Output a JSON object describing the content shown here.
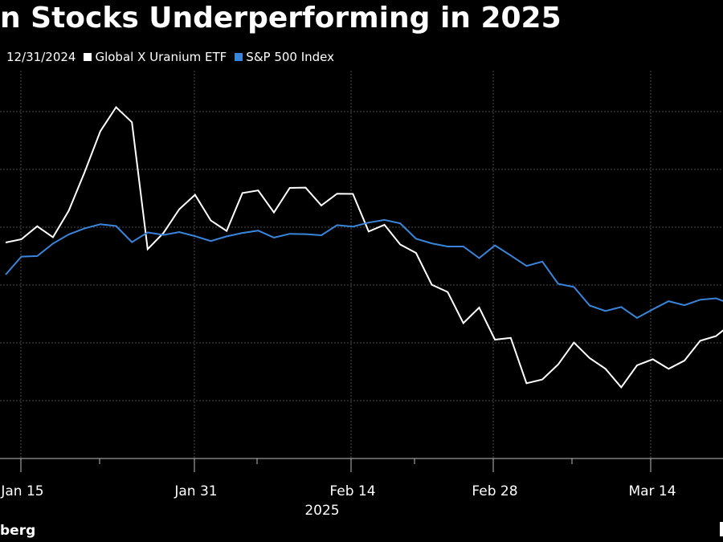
{
  "chart_data": {
    "type": "line",
    "title": "n Stocks Underperforming in 2025",
    "legend": [
      "12/31/2024",
      "Global X Uranium ETF",
      "S&P 500 Index"
    ],
    "year_label": "2025",
    "source": "berg",
    "x_ticks": [
      "Jan 15",
      "Jan 31",
      "Feb 14",
      "Feb 28",
      "Mar 14"
    ],
    "grid": true,
    "series": [
      {
        "name": "Global X Uranium ETF",
        "color": "#ffffff",
        "values": [
          105.0,
          106.1,
          110.6,
          106.8,
          116.0,
          129.3,
          143.5,
          151.8,
          146.6,
          102.7,
          108.3,
          116.5,
          121.5,
          112.6,
          109.0,
          122.1,
          123.0,
          115.4,
          123.9,
          124.0,
          117.8,
          121.9,
          121.8,
          108.8,
          111.1,
          104.3,
          101.4,
          90.4,
          87.9,
          77.1,
          82.5,
          71.4,
          72.0,
          56.3,
          57.6,
          62.8,
          70.4,
          65.0,
          61.3,
          54.9,
          62.5,
          64.6,
          61.3,
          64.1,
          71.0,
          72.6,
          77.0,
          80.6,
          84.2
        ]
      },
      {
        "name": "S&P 500 Index",
        "color": "#3a85dc",
        "values": [
          93.9,
          100.1,
          100.3,
          104.6,
          107.8,
          109.9,
          111.3,
          110.7,
          105.1,
          108.5,
          107.6,
          108.6,
          107.2,
          105.5,
          107.1,
          108.3,
          109.1,
          106.7,
          108.0,
          107.9,
          107.5,
          111.0,
          110.5,
          111.9,
          112.8,
          111.6,
          106.3,
          104.7,
          103.6,
          103.6,
          99.6,
          104.0,
          100.5,
          96.9,
          98.4,
          90.7,
          89.6,
          83.2,
          81.3,
          82.7,
          78.9,
          81.9,
          84.7,
          83.3,
          85.2,
          85.7,
          83.6,
          83.4,
          85.3
        ]
      }
    ]
  }
}
